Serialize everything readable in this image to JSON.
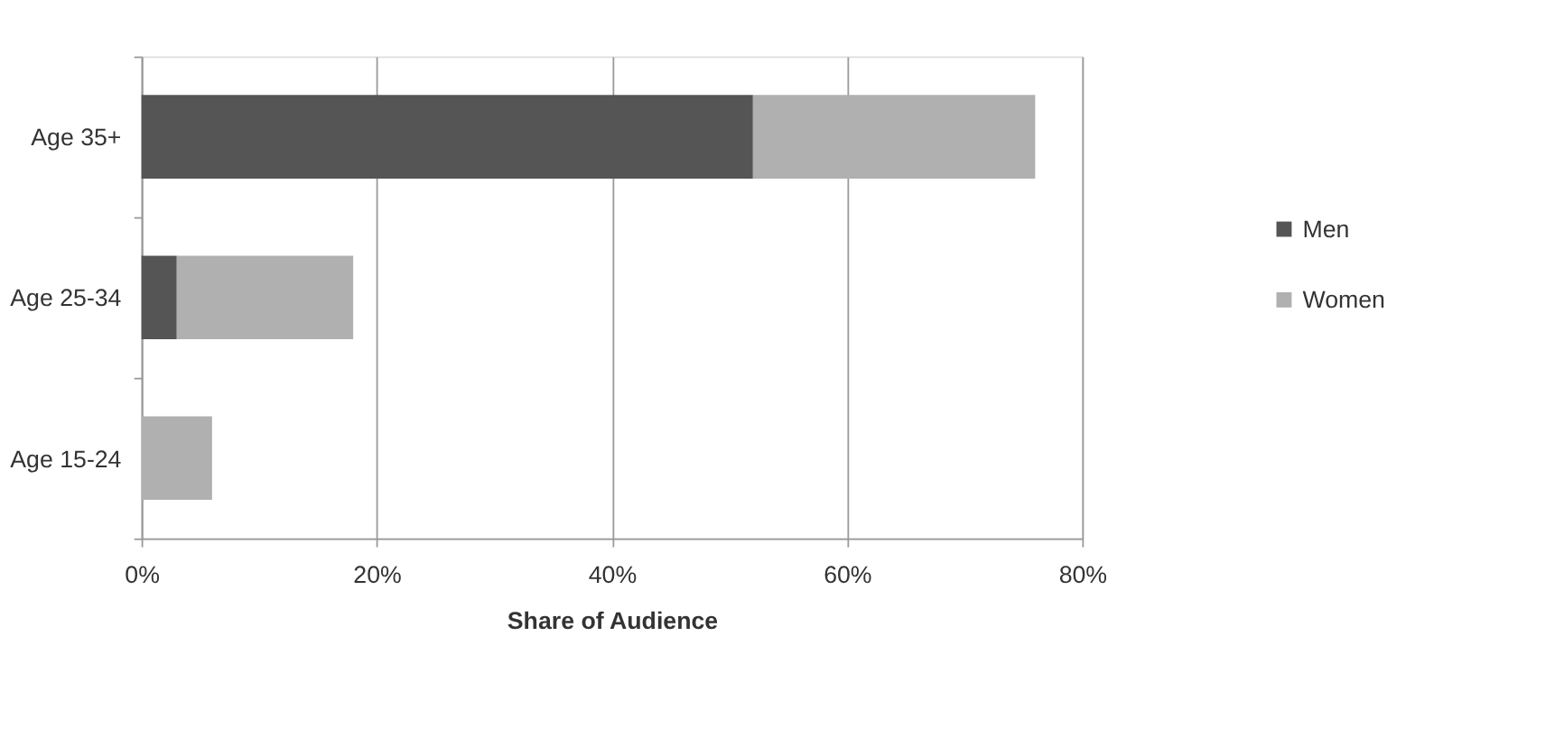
{
  "chart_data": {
    "type": "bar",
    "orientation": "horizontal",
    "stacked": true,
    "xlabel": "Share of Audience",
    "categories": [
      "Age 35+",
      "Age 25-34",
      "Age 15-24"
    ],
    "series": [
      {
        "name": "Men",
        "color": "#555555",
        "values": [
          52,
          3,
          0
        ]
      },
      {
        "name": "Women",
        "color": "#b0b0b0",
        "values": [
          24,
          15,
          6
        ]
      }
    ],
    "xlim": [
      0,
      80
    ],
    "xticks": [
      {
        "value": 0,
        "label": "0%"
      },
      {
        "value": 20,
        "label": "20%"
      },
      {
        "value": 40,
        "label": "40%"
      },
      {
        "value": 60,
        "label": "60%"
      },
      {
        "value": 80,
        "label": "80%"
      }
    ],
    "grid": "x",
    "legend": "right"
  }
}
